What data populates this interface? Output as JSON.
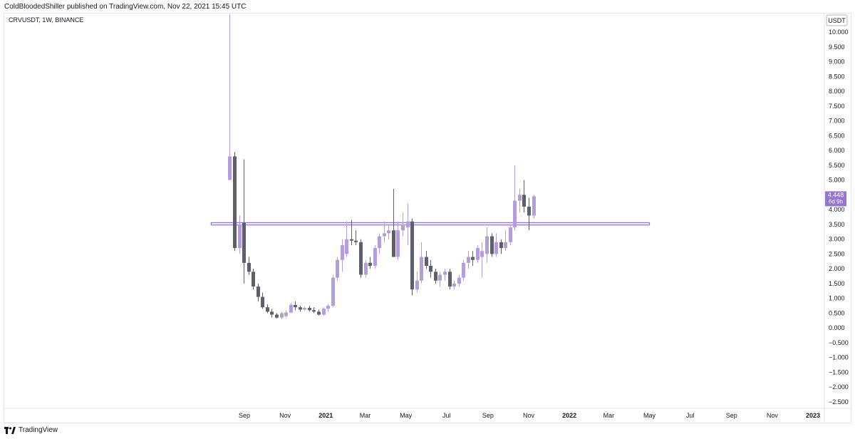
{
  "header": {
    "author": "ColdBloodedShiller",
    "published_text": "published on TradingView.com, Nov 22, 2021 15:45 UTC"
  },
  "symbol_label": "CRVUSDT, 1W, BINANCE",
  "currency_badge": "USDT",
  "price_tag": {
    "price": "4.448",
    "countdown": "6d 9h"
  },
  "footer": {
    "logo_text": "TradingView"
  },
  "colors": {
    "up": "#b39ddb",
    "down": "#5d606b",
    "zone": "#9575cd",
    "tag": "#9575cd"
  },
  "chart_data": {
    "type": "candlestick",
    "title": "",
    "y_axis_position": "right",
    "ylim": [
      -2.6,
      10.6
    ],
    "y_ticks": [
      10.0,
      9.5,
      9.0,
      8.5,
      8.0,
      7.5,
      7.0,
      6.5,
      6.0,
      5.5,
      5.0,
      4.5,
      4.0,
      3.5,
      3.0,
      2.5,
      2.0,
      1.5,
      1.0,
      0.5,
      0.0,
      -0.5,
      -1.0,
      -1.5,
      -2.0,
      -2.5
    ],
    "y_tick_labels": [
      "10.000",
      "9.500",
      "9.000",
      "8.500",
      "8.000",
      "7.500",
      "7.000",
      "6.500",
      "6.000",
      "5.500",
      "5.000",
      "4.500",
      "4.000",
      "3.500",
      "3.000",
      "2.500",
      "2.000",
      "1.500",
      "1.000",
      "0.500",
      "0.000",
      "−0.500",
      "−1.000",
      "−1.500",
      "−2.000",
      "−2.500"
    ],
    "x_range": [
      "2020-08-01",
      "2023-01-20"
    ],
    "x_ticks": [
      {
        "label": "Sep",
        "date": "2020-09-01",
        "bold": false
      },
      {
        "label": "Nov",
        "date": "2020-11-01",
        "bold": false
      },
      {
        "label": "2021",
        "date": "2021-01-01",
        "bold": true
      },
      {
        "label": "Mar",
        "date": "2021-03-01",
        "bold": false
      },
      {
        "label": "May",
        "date": "2021-05-01",
        "bold": false
      },
      {
        "label": "Jul",
        "date": "2021-07-01",
        "bold": false
      },
      {
        "label": "Sep",
        "date": "2021-09-01",
        "bold": false
      },
      {
        "label": "Nov",
        "date": "2021-11-01",
        "bold": false
      },
      {
        "label": "2022",
        "date": "2022-01-01",
        "bold": true
      },
      {
        "label": "Mar",
        "date": "2022-03-01",
        "bold": false
      },
      {
        "label": "May",
        "date": "2022-05-01",
        "bold": false
      },
      {
        "label": "Jul",
        "date": "2022-07-01",
        "bold": false
      },
      {
        "label": "Sep",
        "date": "2022-09-01",
        "bold": false
      },
      {
        "label": "Nov",
        "date": "2022-11-01",
        "bold": false
      },
      {
        "label": "2023",
        "date": "2023-01-01",
        "bold": true
      }
    ],
    "zone": {
      "low": 3.48,
      "high": 3.56,
      "from": "2020-08-10",
      "to": "2022-05-01"
    },
    "candles": [
      {
        "date": "2020-08-10",
        "open": 5.0,
        "high": 10.6,
        "low": 5.0,
        "close": 5.8
      },
      {
        "date": "2020-08-17",
        "open": 5.8,
        "high": 5.95,
        "low": 2.6,
        "close": 2.7
      },
      {
        "date": "2020-08-24",
        "open": 2.7,
        "high": 3.8,
        "low": 2.5,
        "close": 3.5
      },
      {
        "date": "2020-08-31",
        "open": 3.55,
        "high": 5.7,
        "low": 1.5,
        "close": 2.2
      },
      {
        "date": "2020-09-07",
        "open": 2.2,
        "high": 2.4,
        "low": 1.8,
        "close": 1.9
      },
      {
        "date": "2020-09-14",
        "open": 1.9,
        "high": 2.0,
        "low": 1.3,
        "close": 1.4
      },
      {
        "date": "2020-09-21",
        "open": 1.4,
        "high": 1.5,
        "low": 0.9,
        "close": 1.05
      },
      {
        "date": "2020-09-28",
        "open": 1.05,
        "high": 1.2,
        "low": 0.65,
        "close": 0.7
      },
      {
        "date": "2020-10-05",
        "open": 0.7,
        "high": 0.8,
        "low": 0.5,
        "close": 0.55
      },
      {
        "date": "2020-10-12",
        "open": 0.55,
        "high": 0.65,
        "low": 0.35,
        "close": 0.45
      },
      {
        "date": "2020-10-19",
        "open": 0.45,
        "high": 0.5,
        "low": 0.32,
        "close": 0.35
      },
      {
        "date": "2020-10-26",
        "open": 0.35,
        "high": 0.55,
        "low": 0.3,
        "close": 0.5
      },
      {
        "date": "2020-11-02",
        "open": 0.4,
        "high": 0.6,
        "low": 0.35,
        "close": 0.52
      },
      {
        "date": "2020-11-09",
        "open": 0.52,
        "high": 0.85,
        "low": 0.5,
        "close": 0.78
      },
      {
        "date": "2020-11-16",
        "open": 0.78,
        "high": 0.9,
        "low": 0.6,
        "close": 0.7
      },
      {
        "date": "2020-11-23",
        "open": 0.7,
        "high": 0.75,
        "low": 0.55,
        "close": 0.62
      },
      {
        "date": "2020-11-30",
        "open": 0.62,
        "high": 0.72,
        "low": 0.58,
        "close": 0.68
      },
      {
        "date": "2020-12-07",
        "open": 0.68,
        "high": 0.75,
        "low": 0.55,
        "close": 0.6
      },
      {
        "date": "2020-12-14",
        "open": 0.6,
        "high": 0.7,
        "low": 0.5,
        "close": 0.55
      },
      {
        "date": "2020-12-21",
        "open": 0.55,
        "high": 0.62,
        "low": 0.42,
        "close": 0.45
      },
      {
        "date": "2020-12-28",
        "open": 0.45,
        "high": 0.7,
        "low": 0.42,
        "close": 0.65
      },
      {
        "date": "2021-01-04",
        "open": 0.65,
        "high": 0.8,
        "low": 0.55,
        "close": 0.75
      },
      {
        "date": "2021-01-11",
        "open": 0.75,
        "high": 1.8,
        "low": 0.7,
        "close": 1.7
      },
      {
        "date": "2021-01-18",
        "open": 1.7,
        "high": 2.4,
        "low": 1.6,
        "close": 2.3
      },
      {
        "date": "2021-01-25",
        "open": 2.3,
        "high": 3.0,
        "low": 1.9,
        "close": 2.8
      },
      {
        "date": "2021-02-01",
        "open": 2.5,
        "high": 3.6,
        "low": 2.4,
        "close": 3.0
      },
      {
        "date": "2021-02-08",
        "open": 3.0,
        "high": 3.65,
        "low": 2.8,
        "close": 2.95
      },
      {
        "date": "2021-02-15",
        "open": 2.95,
        "high": 3.3,
        "low": 2.8,
        "close": 2.9
      },
      {
        "date": "2021-02-22",
        "open": 2.9,
        "high": 3.0,
        "low": 1.7,
        "close": 1.8
      },
      {
        "date": "2021-03-01",
        "open": 1.8,
        "high": 2.3,
        "low": 1.7,
        "close": 2.2
      },
      {
        "date": "2021-03-08",
        "open": 2.2,
        "high": 2.4,
        "low": 2.0,
        "close": 2.1
      },
      {
        "date": "2021-03-15",
        "open": 2.1,
        "high": 2.8,
        "low": 2.0,
        "close": 2.7
      },
      {
        "date": "2021-03-22",
        "open": 2.7,
        "high": 3.2,
        "low": 2.5,
        "close": 3.1
      },
      {
        "date": "2021-03-29",
        "open": 3.1,
        "high": 3.6,
        "low": 2.9,
        "close": 3.2
      },
      {
        "date": "2021-04-05",
        "open": 3.2,
        "high": 3.5,
        "low": 3.0,
        "close": 3.3
      },
      {
        "date": "2021-04-12",
        "open": 3.3,
        "high": 4.7,
        "low": 2.4,
        "close": 2.4
      },
      {
        "date": "2021-04-19",
        "open": 2.4,
        "high": 3.6,
        "low": 2.3,
        "close": 3.3
      },
      {
        "date": "2021-04-26",
        "open": 3.3,
        "high": 3.9,
        "low": 3.1,
        "close": 3.5
      },
      {
        "date": "2021-05-03",
        "open": 3.4,
        "high": 4.2,
        "low": 2.8,
        "close": 3.6
      },
      {
        "date": "2021-05-10",
        "open": 3.6,
        "high": 3.7,
        "low": 1.1,
        "close": 1.3
      },
      {
        "date": "2021-05-17",
        "open": 1.3,
        "high": 1.9,
        "low": 1.2,
        "close": 1.6
      },
      {
        "date": "2021-05-24",
        "open": 1.6,
        "high": 2.9,
        "low": 1.5,
        "close": 2.4
      },
      {
        "date": "2021-05-31",
        "open": 2.4,
        "high": 2.6,
        "low": 2.0,
        "close": 2.1
      },
      {
        "date": "2021-06-07",
        "open": 2.1,
        "high": 2.3,
        "low": 1.7,
        "close": 1.9
      },
      {
        "date": "2021-06-14",
        "open": 1.9,
        "high": 2.0,
        "low": 1.5,
        "close": 1.6
      },
      {
        "date": "2021-06-21",
        "open": 1.6,
        "high": 1.9,
        "low": 1.4,
        "close": 1.8
      },
      {
        "date": "2021-06-28",
        "open": 1.8,
        "high": 2.0,
        "low": 1.6,
        "close": 1.9
      },
      {
        "date": "2021-07-05",
        "open": 1.9,
        "high": 2.0,
        "low": 1.3,
        "close": 1.4
      },
      {
        "date": "2021-07-12",
        "open": 1.4,
        "high": 1.6,
        "low": 1.3,
        "close": 1.5
      },
      {
        "date": "2021-07-19",
        "open": 1.5,
        "high": 1.8,
        "low": 1.4,
        "close": 1.7
      },
      {
        "date": "2021-07-26",
        "open": 1.7,
        "high": 2.3,
        "low": 1.6,
        "close": 2.2
      },
      {
        "date": "2021-08-02",
        "open": 2.2,
        "high": 2.6,
        "low": 2.0,
        "close": 2.4
      },
      {
        "date": "2021-08-09",
        "open": 2.4,
        "high": 2.6,
        "low": 2.1,
        "close": 2.3
      },
      {
        "date": "2021-08-16",
        "open": 2.3,
        "high": 2.8,
        "low": 2.2,
        "close": 2.7
      },
      {
        "date": "2021-08-23",
        "open": 2.4,
        "high": 2.9,
        "low": 1.7,
        "close": 2.6
      },
      {
        "date": "2021-08-30",
        "open": 2.5,
        "high": 3.4,
        "low": 2.2,
        "close": 3.1
      },
      {
        "date": "2021-09-06",
        "open": 3.1,
        "high": 3.2,
        "low": 2.4,
        "close": 2.5
      },
      {
        "date": "2021-09-13",
        "open": 2.5,
        "high": 3.2,
        "low": 2.4,
        "close": 2.9
      },
      {
        "date": "2021-09-20",
        "open": 2.9,
        "high": 3.0,
        "low": 2.5,
        "close": 2.7
      },
      {
        "date": "2021-09-27",
        "open": 2.7,
        "high": 3.3,
        "low": 2.6,
        "close": 2.9
      },
      {
        "date": "2021-10-04",
        "open": 2.9,
        "high": 3.5,
        "low": 2.8,
        "close": 3.4
      },
      {
        "date": "2021-10-11",
        "open": 3.4,
        "high": 5.5,
        "low": 3.3,
        "close": 4.3
      },
      {
        "date": "2021-10-18",
        "open": 4.3,
        "high": 4.7,
        "low": 3.9,
        "close": 4.5
      },
      {
        "date": "2021-10-25",
        "open": 4.5,
        "high": 5.0,
        "low": 3.9,
        "close": 4.1
      },
      {
        "date": "2021-11-01",
        "open": 4.1,
        "high": 4.4,
        "low": 3.3,
        "close": 3.8
      },
      {
        "date": "2021-11-08",
        "open": 3.8,
        "high": 4.5,
        "low": 3.7,
        "close": 4.45
      }
    ]
  }
}
